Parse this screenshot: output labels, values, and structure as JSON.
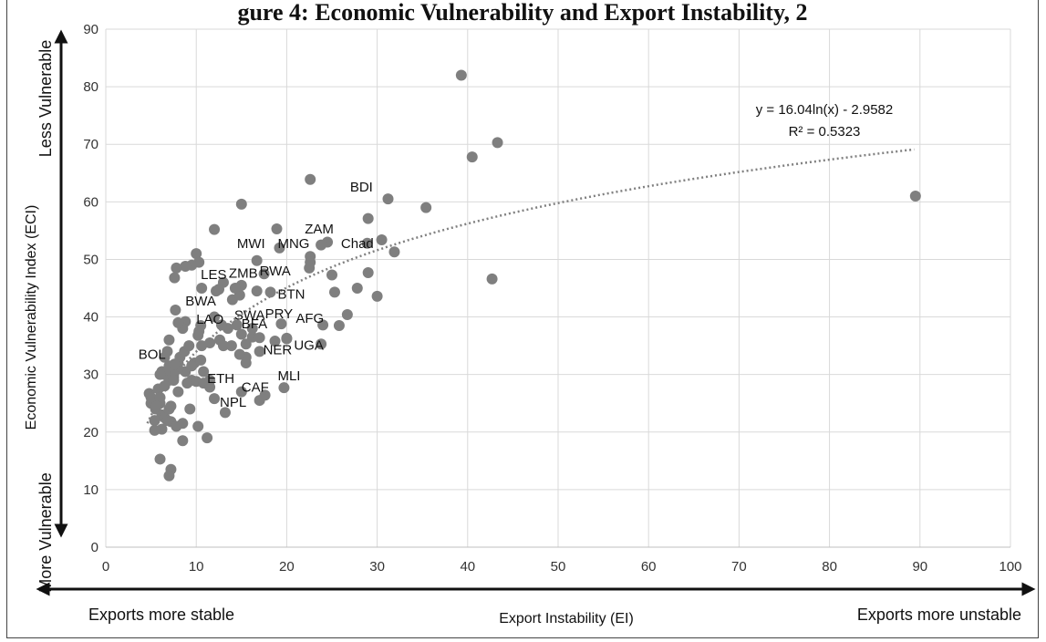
{
  "title": "gure 4: Economic Vulnerability and Export Instability, 2",
  "chart_data": {
    "type": "scatter",
    "title": "gure 4: Economic Vulnerability and Export Instability, 2",
    "xlabel": "Export Instability (EI)",
    "ylabel": "Economic Vulnerability Index (ECI)",
    "xlim": [
      0,
      100
    ],
    "ylim": [
      0,
      90
    ],
    "x_ticks": [
      0,
      10,
      20,
      30,
      40,
      50,
      60,
      70,
      80,
      90,
      100
    ],
    "y_ticks": [
      0,
      10,
      20,
      30,
      40,
      50,
      60,
      70,
      80,
      90
    ],
    "grid": true,
    "point_color": "#7f7f7f",
    "trendline": {
      "kind": "logarithmic",
      "a": 16.04,
      "b": -2.9582,
      "x_range": [
        4.6,
        89.5
      ],
      "equation": "y = 16.04ln(x) - 2.9582",
      "r_squared": "R² = 0.5323",
      "color": "#808080"
    },
    "annotations": {
      "y_top": "Less Vulnerable",
      "y_bottom": "More Vulnerable",
      "x_left": "Exports more stable",
      "x_right": "Exports more unstable"
    },
    "labels": [
      {
        "text": "BDI",
        "x": 27.0,
        "y": 61.8
      },
      {
        "text": "ZAM",
        "x": 22.0,
        "y": 54.5
      },
      {
        "text": "Chad",
        "x": 26.0,
        "y": 52.0
      },
      {
        "text": "MWI",
        "x": 14.5,
        "y": 52.0
      },
      {
        "text": "MNG",
        "x": 19.0,
        "y": 52.0
      },
      {
        "text": "LES",
        "x": 10.5,
        "y": 46.6
      },
      {
        "text": "ZMB",
        "x": 13.6,
        "y": 46.8
      },
      {
        "text": "RWA",
        "x": 17.0,
        "y": 47.2
      },
      {
        "text": "BTN",
        "x": 19.0,
        "y": 43.2
      },
      {
        "text": "BWA",
        "x": 8.8,
        "y": 42.0
      },
      {
        "text": "LAO",
        "x": 10.0,
        "y": 38.8
      },
      {
        "text": "SWA",
        "x": 14.2,
        "y": 39.5
      },
      {
        "text": "BFA",
        "x": 15.0,
        "y": 38.0
      },
      {
        "text": "PRY",
        "x": 17.6,
        "y": 39.8
      },
      {
        "text": "AFG",
        "x": 21.0,
        "y": 39.0
      },
      {
        "text": "BOL",
        "x": 3.6,
        "y": 32.7
      },
      {
        "text": "NER",
        "x": 17.4,
        "y": 33.5
      },
      {
        "text": "UGA",
        "x": 20.8,
        "y": 34.3
      },
      {
        "text": "ETH",
        "x": 11.2,
        "y": 28.5
      },
      {
        "text": "MLI",
        "x": 19.0,
        "y": 29.0
      },
      {
        "text": "CAF",
        "x": 15.0,
        "y": 27.0
      },
      {
        "text": "NPL",
        "x": 12.6,
        "y": 24.4
      }
    ],
    "x": [
      39.3,
      43.3,
      40.5,
      22.6,
      15.0,
      31.2,
      35.4,
      29.0,
      89.5,
      42.7,
      12.0,
      18.9,
      19.2,
      24.5,
      23.8,
      30.5,
      28.9,
      31.9,
      22.6,
      22.6,
      16.7,
      17.5,
      25.0,
      29.0,
      22.5,
      18.2,
      25.3,
      27.8,
      30.0,
      16.7,
      15.0,
      12.2,
      13.0,
      12.5,
      14.0,
      14.8,
      14.3,
      10.0,
      10.3,
      9.5,
      8.8,
      7.8,
      7.6,
      10.6,
      12.0,
      13.5,
      16.2,
      19.4,
      20.0,
      24.0,
      26.7,
      25.8,
      23.8,
      16.2,
      15.0,
      15.5,
      17.0,
      14.5,
      12.8,
      12.6,
      11.5,
      10.5,
      10.3,
      8.8,
      8.5,
      8.0,
      7.7,
      10.2,
      10.6,
      13.0,
      13.9,
      15.5,
      18.7,
      20.0,
      17.0,
      15.5,
      14.8,
      7.0,
      6.8,
      6.5,
      6.2,
      8.2,
      8.7,
      9.2,
      9.8,
      10.5,
      10.8,
      11.5,
      9.5,
      8.8,
      8.0,
      7.5,
      7.0,
      6.5,
      6.0,
      5.8,
      5.5,
      5.0,
      4.8,
      5.0,
      5.5,
      6.0,
      6.2,
      6.5,
      6.8,
      7.2,
      7.8,
      8.5,
      9.3,
      10.2,
      11.2,
      12.0,
      13.2,
      15.0,
      17.0,
      17.6,
      19.7,
      9.5,
      8.0,
      7.5,
      7.0,
      6.5,
      6.0,
      5.6,
      5.4,
      6.2,
      7.0,
      7.2,
      8.0,
      9.0,
      10.0,
      10.8,
      11.5,
      7.5,
      6.0,
      5.4,
      7.2,
      7.0,
      7.6,
      8.5
    ],
    "y": [
      82.0,
      70.3,
      67.8,
      63.9,
      59.6,
      60.5,
      59.0,
      57.1,
      61.0,
      46.6,
      55.2,
      55.3,
      52.0,
      53.0,
      52.5,
      53.4,
      52.8,
      51.3,
      50.5,
      49.5,
      49.8,
      47.5,
      47.3,
      47.7,
      48.5,
      44.3,
      44.3,
      45.0,
      43.6,
      44.5,
      45.5,
      44.5,
      46.0,
      44.8,
      43.0,
      43.8,
      45.0,
      51.0,
      49.5,
      49.0,
      48.8,
      48.5,
      46.8,
      45.0,
      40.0,
      38.0,
      36.5,
      38.8,
      36.2,
      38.6,
      40.4,
      38.5,
      35.3,
      38.0,
      37.0,
      35.3,
      36.4,
      38.6,
      38.6,
      36.0,
      35.5,
      38.5,
      37.5,
      39.2,
      38.0,
      39.0,
      41.2,
      36.8,
      35.0,
      35.0,
      35.0,
      32.0,
      35.8,
      36.3,
      34.0,
      33.0,
      33.5,
      36.0,
      34.0,
      33.0,
      30.5,
      33.0,
      34.0,
      35.0,
      32.0,
      32.5,
      30.5,
      29.0,
      29.0,
      30.5,
      31.0,
      30.0,
      31.5,
      30.0,
      30.0,
      27.5,
      25.5,
      25.0,
      26.7,
      26.0,
      24.0,
      25.0,
      23.0,
      22.5,
      22.0,
      21.8,
      21.0,
      21.5,
      24.0,
      21.0,
      19.0,
      25.8,
      23.4,
      27.0,
      25.5,
      26.4,
      27.7,
      31.5,
      32.0,
      29.5,
      29.0,
      28.0,
      26.0,
      24.5,
      22.0,
      20.5,
      24.0,
      24.5,
      27.0,
      28.5,
      28.8,
      28.5,
      27.8,
      29.0,
      15.3,
      20.3,
      13.5,
      12.4,
      31.8,
      18.5
    ]
  }
}
